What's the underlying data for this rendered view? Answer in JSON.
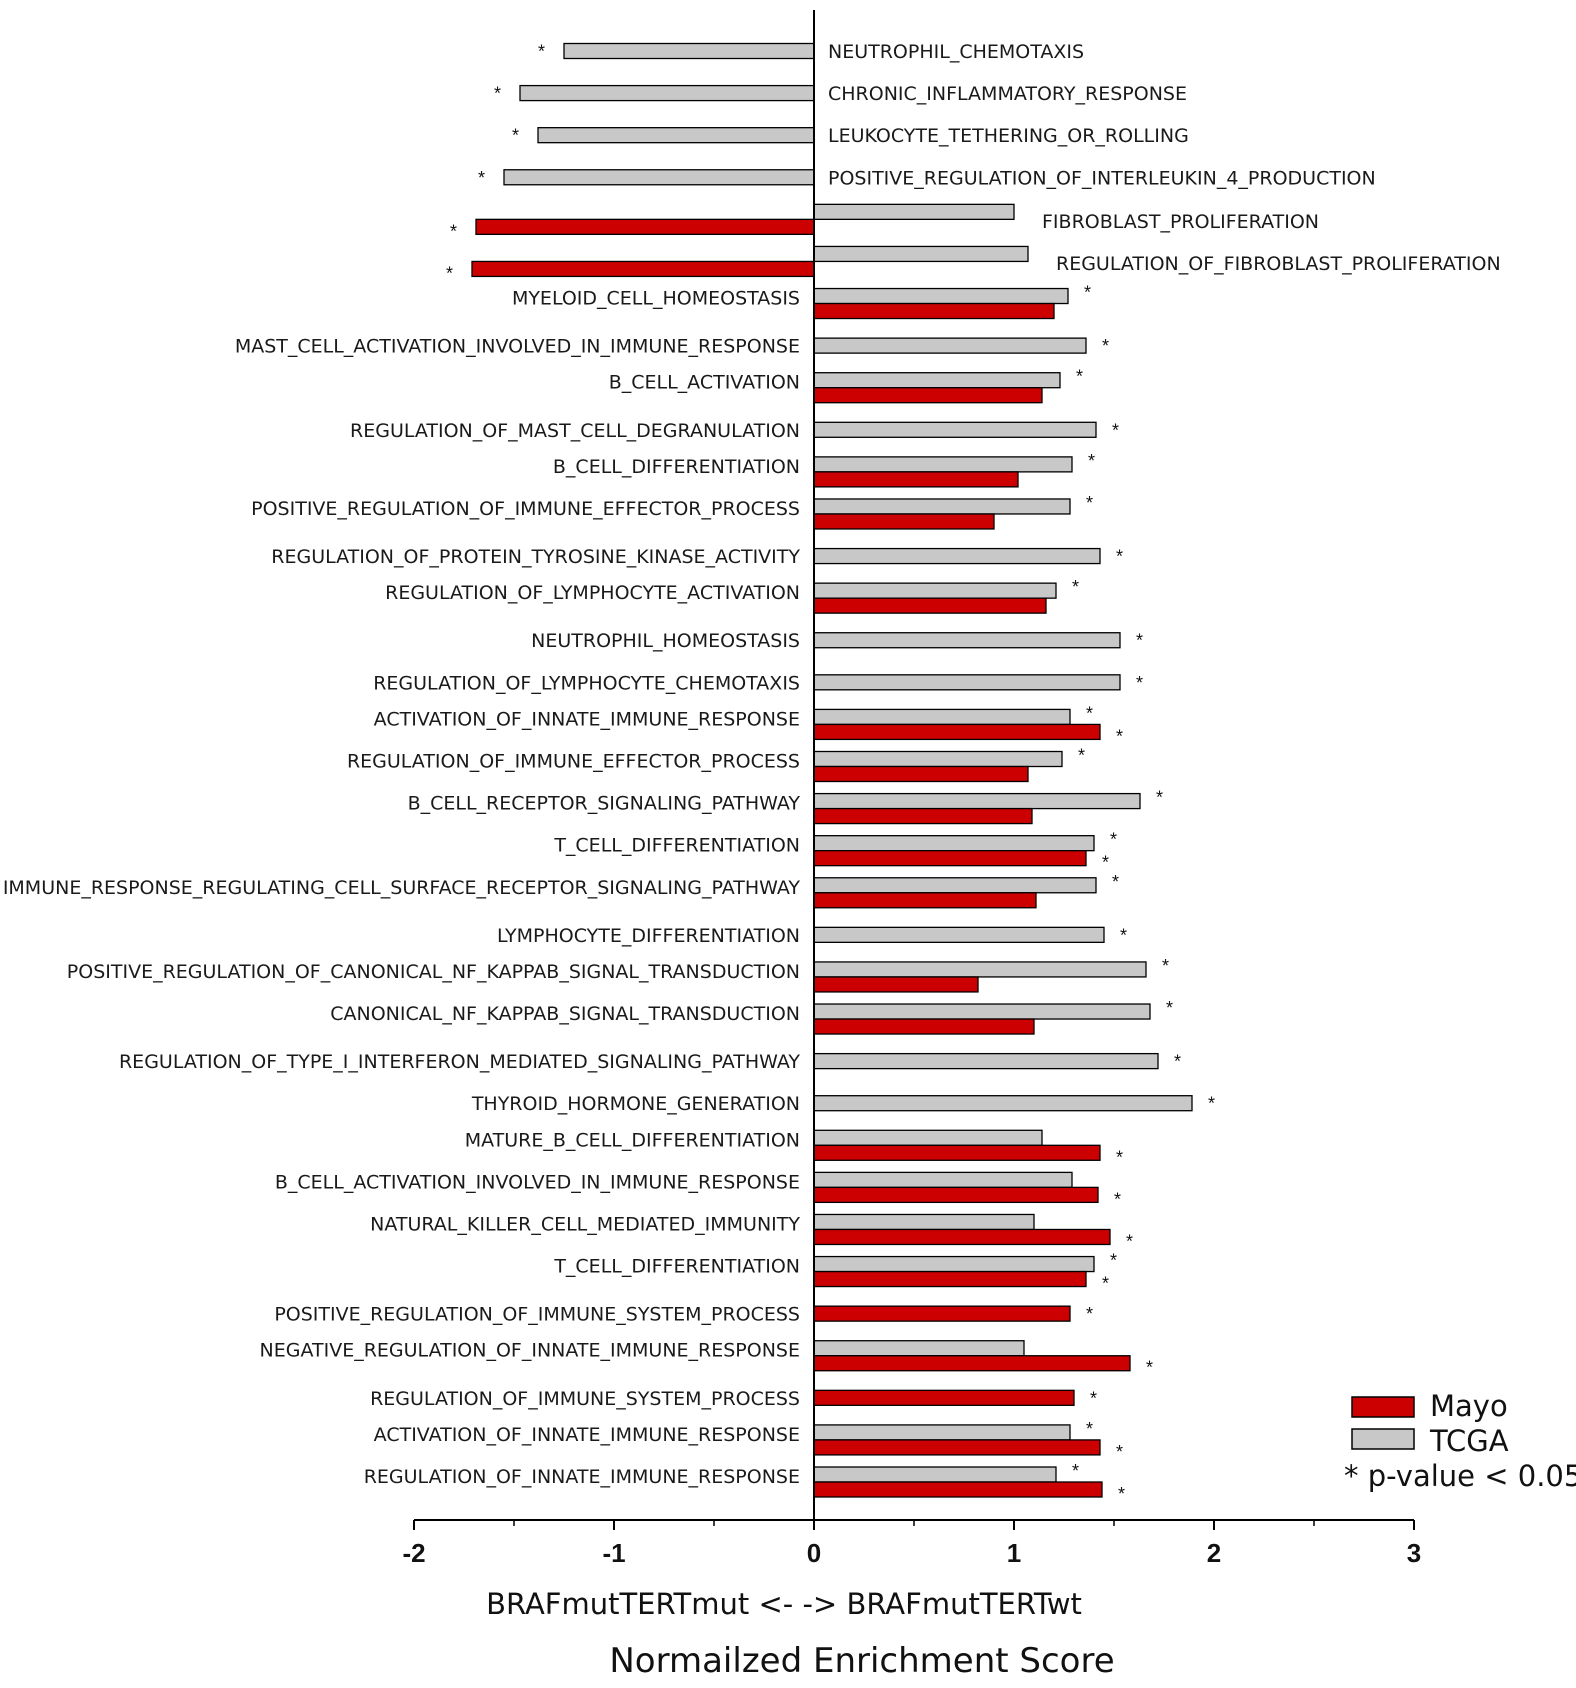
{
  "chart_data": {
    "type": "bar",
    "orientation": "horizontal",
    "xlabel": "BRAFmutTERTmut <- -> BRAFmutTERTwt",
    "xtitle": "Normailzed Enrichment Score",
    "xlim": [
      -2,
      3
    ],
    "xticks": [
      "-2",
      "-1",
      "0",
      "1",
      "2",
      "3"
    ],
    "legend": {
      "position": "bottom-right",
      "items": [
        {
          "name": "Mayo",
          "color": "#cc0000"
        },
        {
          "name": "TCGA",
          "color": "#c8c8c8"
        }
      ],
      "note": "* p-value < 0.05"
    },
    "rows": [
      {
        "label": "NEUTROPHIL_CHEMOTAXIS",
        "tcga": -1.25,
        "mayo": null,
        "tcga_sig": true,
        "mayo_sig": false
      },
      {
        "label": "CHRONIC_INFLAMMATORY_RESPONSE",
        "tcga": -1.47,
        "mayo": null,
        "tcga_sig": true,
        "mayo_sig": false
      },
      {
        "label": "LEUKOCYTE_TETHERING_OR_ROLLING",
        "tcga": -1.38,
        "mayo": null,
        "tcga_sig": true,
        "mayo_sig": false
      },
      {
        "label": "POSITIVE_REGULATION_OF_INTERLEUKIN_4_PRODUCTION",
        "tcga": -1.55,
        "mayo": null,
        "tcga_sig": true,
        "mayo_sig": false
      },
      {
        "label": "FIBROBLAST_PROLIFERATION",
        "tcga": 1.0,
        "mayo": -1.69,
        "tcga_sig": false,
        "mayo_sig": true
      },
      {
        "label": "REGULATION_OF_FIBROBLAST_PROLIFERATION",
        "tcga": 1.07,
        "mayo": -1.71,
        "tcga_sig": false,
        "mayo_sig": true
      },
      {
        "label": "MYELOID_CELL_HOMEOSTASIS",
        "tcga": 1.27,
        "mayo": 1.2,
        "tcga_sig": true,
        "mayo_sig": false
      },
      {
        "label": "MAST_CELL_ACTIVATION_INVOLVED_IN_IMMUNE_RESPONSE",
        "tcga": 1.36,
        "mayo": null,
        "tcga_sig": true,
        "mayo_sig": false
      },
      {
        "label": "B_CELL_ACTIVATION",
        "tcga": 1.23,
        "mayo": 1.14,
        "tcga_sig": true,
        "mayo_sig": false
      },
      {
        "label": "REGULATION_OF_MAST_CELL_DEGRANULATION",
        "tcga": 1.41,
        "mayo": null,
        "tcga_sig": true,
        "mayo_sig": false
      },
      {
        "label": "B_CELL_DIFFERENTIATION",
        "tcga": 1.29,
        "mayo": 1.02,
        "tcga_sig": true,
        "mayo_sig": false
      },
      {
        "label": "POSITIVE_REGULATION_OF_IMMUNE_EFFECTOR_PROCESS",
        "tcga": 1.28,
        "mayo": 0.9,
        "tcga_sig": true,
        "mayo_sig": false
      },
      {
        "label": "REGULATION_OF_PROTEIN_TYROSINE_KINASE_ACTIVITY",
        "tcga": 1.43,
        "mayo": null,
        "tcga_sig": true,
        "mayo_sig": false
      },
      {
        "label": "REGULATION_OF_LYMPHOCYTE_ACTIVATION",
        "tcga": 1.21,
        "mayo": 1.16,
        "tcga_sig": true,
        "mayo_sig": false
      },
      {
        "label": "NEUTROPHIL_HOMEOSTASIS",
        "tcga": 1.53,
        "mayo": null,
        "tcga_sig": true,
        "mayo_sig": false
      },
      {
        "label": "REGULATION_OF_LYMPHOCYTE_CHEMOTAXIS",
        "tcga": 1.53,
        "mayo": null,
        "tcga_sig": true,
        "mayo_sig": false
      },
      {
        "label": "ACTIVATION_OF_INNATE_IMMUNE_RESPONSE",
        "tcga": 1.28,
        "mayo": 1.43,
        "tcga_sig": true,
        "mayo_sig": true
      },
      {
        "label": "REGULATION_OF_IMMUNE_EFFECTOR_PROCESS",
        "tcga": 1.24,
        "mayo": 1.07,
        "tcga_sig": true,
        "mayo_sig": false
      },
      {
        "label": "B_CELL_RECEPTOR_SIGNALING_PATHWAY",
        "tcga": 1.63,
        "mayo": 1.09,
        "tcga_sig": true,
        "mayo_sig": false
      },
      {
        "label": "T_CELL_DIFFERENTIATION",
        "tcga": 1.4,
        "mayo": 1.36,
        "tcga_sig": true,
        "mayo_sig": true
      },
      {
        "label": "IMMUNE_RESPONSE_REGULATING_CELL_SURFACE_RECEPTOR_SIGNALING_PATHWAY",
        "tcga": 1.41,
        "mayo": 1.11,
        "tcga_sig": true,
        "mayo_sig": false
      },
      {
        "label": "LYMPHOCYTE_DIFFERENTIATION",
        "tcga": 1.45,
        "mayo": null,
        "tcga_sig": true,
        "mayo_sig": false
      },
      {
        "label": "POSITIVE_REGULATION_OF_CANONICAL_NF_KAPPAB_SIGNAL_TRANSDUCTION",
        "tcga": 1.66,
        "mayo": 0.82,
        "tcga_sig": true,
        "mayo_sig": false
      },
      {
        "label": "CANONICAL_NF_KAPPAB_SIGNAL_TRANSDUCTION",
        "tcga": 1.68,
        "mayo": 1.1,
        "tcga_sig": true,
        "mayo_sig": false
      },
      {
        "label": "REGULATION_OF_TYPE_I_INTERFERON_MEDIATED_SIGNALING_PATHWAY",
        "tcga": 1.72,
        "mayo": null,
        "tcga_sig": true,
        "mayo_sig": false
      },
      {
        "label": "THYROID_HORMONE_GENERATION",
        "tcga": 1.89,
        "mayo": null,
        "tcga_sig": true,
        "mayo_sig": false
      },
      {
        "label": "MATURE_B_CELL_DIFFERENTIATION",
        "tcga": 1.14,
        "mayo": 1.43,
        "tcga_sig": false,
        "mayo_sig": true
      },
      {
        "label": "B_CELL_ACTIVATION_INVOLVED_IN_IMMUNE_RESPONSE",
        "tcga": 1.29,
        "mayo": 1.42,
        "tcga_sig": false,
        "mayo_sig": true
      },
      {
        "label": "NATURAL_KILLER_CELL_MEDIATED_IMMUNITY",
        "tcga": 1.1,
        "mayo": 1.48,
        "tcga_sig": false,
        "mayo_sig": true
      },
      {
        "label": "T_CELL_DIFFERENTIATION",
        "tcga": 1.4,
        "mayo": 1.36,
        "tcga_sig": true,
        "mayo_sig": true
      },
      {
        "label": "POSITIVE_REGULATION_OF_IMMUNE_SYSTEM_PROCESS",
        "tcga": null,
        "mayo": 1.28,
        "tcga_sig": false,
        "mayo_sig": true
      },
      {
        "label": "NEGATIVE_REGULATION_OF_INNATE_IMMUNE_RESPONSE",
        "tcga": 1.05,
        "mayo": 1.58,
        "tcga_sig": false,
        "mayo_sig": true
      },
      {
        "label": "REGULATION_OF_IMMUNE_SYSTEM_PROCESS",
        "tcga": null,
        "mayo": 1.3,
        "tcga_sig": false,
        "mayo_sig": true
      },
      {
        "label": "ACTIVATION_OF_INNATE_IMMUNE_RESPONSE",
        "tcga": 1.28,
        "mayo": 1.43,
        "tcga_sig": true,
        "mayo_sig": true
      },
      {
        "label": "REGULATION_OF_INNATE_IMMUNE_RESPONSE",
        "tcga": 1.21,
        "mayo": 1.44,
        "tcga_sig": true,
        "mayo_sig": true
      }
    ]
  }
}
